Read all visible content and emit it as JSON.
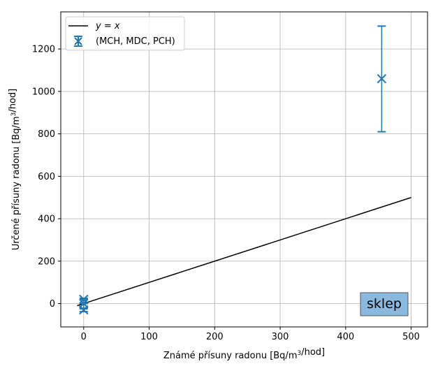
{
  "chart_data": {
    "type": "scatter",
    "xlabel": "Známé přísuny radonu [Bq/m³/hod]",
    "ylabel": "Určené přísuny radonu [Bq/m³/hod]",
    "xlim": [
      -35,
      525
    ],
    "ylim": [
      -110,
      1375
    ],
    "xticks": [
      0,
      100,
      200,
      300,
      400,
      500
    ],
    "yticks": [
      0,
      200,
      400,
      600,
      800,
      1000,
      1200
    ],
    "grid": true,
    "legend_position": "top-left",
    "reference_line": {
      "name": "y = x",
      "x": [
        -10,
        500
      ],
      "y": [
        -10,
        500
      ],
      "color": "#000000"
    },
    "series": [
      {
        "name": "(MCH, MDC, PCH)",
        "color": "#1f77b4",
        "marker": "x",
        "points": [
          {
            "x": 0,
            "y": 20,
            "err_low": 0,
            "err_high": 20
          },
          {
            "x": 0,
            "y": 0,
            "err_low": -25,
            "err_high": 25
          },
          {
            "x": 0,
            "y": -30,
            "err_low": -38,
            "err_high": -22
          },
          {
            "x": 455,
            "y": 1060,
            "err_low": 810,
            "err_high": 1308
          }
        ]
      }
    ],
    "annotation": {
      "text": "sklep",
      "position": "bottom-right",
      "background": "#8ab8de"
    }
  }
}
